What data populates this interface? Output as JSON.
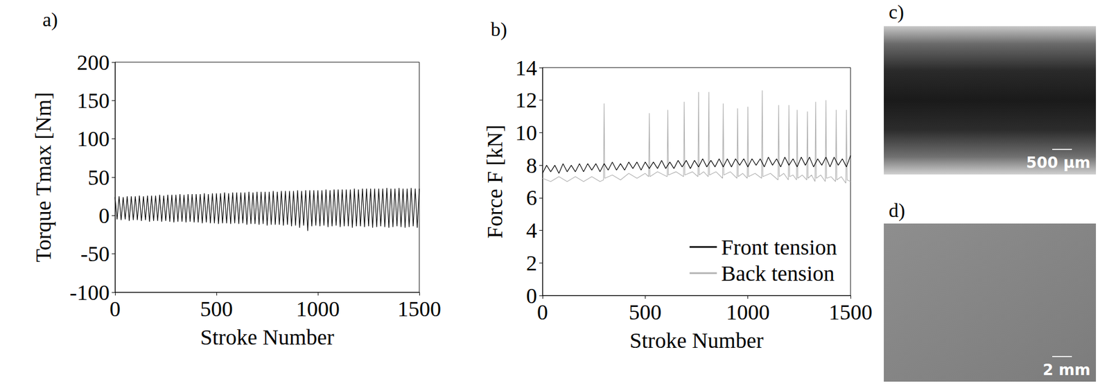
{
  "chart_data": [
    {
      "type": "line",
      "panel_label": "a)",
      "x_label": "Stroke Number",
      "y_label": "Torque Tmax [Nm]",
      "xlim": [
        0,
        1500
      ],
      "xticks": [
        0,
        500,
        1000,
        1500
      ],
      "ylim": [
        -100,
        200
      ],
      "yticks": [
        -100,
        -50,
        0,
        50,
        100,
        150,
        200
      ],
      "grid": false,
      "x": [
        0,
        10,
        20,
        30,
        40,
        50,
        60,
        70,
        80,
        90,
        100,
        110,
        120,
        130,
        140,
        150,
        160,
        170,
        180,
        190,
        200,
        210,
        220,
        230,
        240,
        250,
        260,
        270,
        280,
        290,
        300,
        310,
        320,
        330,
        340,
        350,
        360,
        370,
        380,
        390,
        400,
        410,
        420,
        430,
        440,
        450,
        460,
        470,
        480,
        490,
        500,
        510,
        520,
        530,
        540,
        550,
        560,
        570,
        580,
        590,
        600,
        610,
        620,
        630,
        640,
        650,
        660,
        670,
        680,
        690,
        700,
        710,
        720,
        730,
        740,
        750,
        760,
        770,
        780,
        790,
        800,
        810,
        820,
        830,
        840,
        850,
        860,
        870,
        880,
        890,
        900,
        910,
        920,
        930,
        940,
        950,
        960,
        970,
        980,
        990,
        1000,
        1010,
        1020,
        1030,
        1040,
        1050,
        1060,
        1070,
        1080,
        1090,
        1100,
        1110,
        1120,
        1130,
        1140,
        1150,
        1160,
        1170,
        1180,
        1190,
        1200,
        1210,
        1220,
        1230,
        1240,
        1250,
        1260,
        1270,
        1280,
        1290,
        1300,
        1310,
        1320,
        1330,
        1340,
        1350,
        1360,
        1370,
        1380,
        1390,
        1400,
        1410,
        1420,
        1430,
        1440,
        1450,
        1460,
        1470,
        1480,
        1490,
        1500
      ],
      "series": [
        {
          "color": "#000000",
          "values": [
            24,
            -5,
            25,
            -6,
            24,
            -5,
            25,
            -7,
            25,
            -6,
            25,
            -6,
            26,
            -7,
            25,
            -6,
            26,
            -8,
            26,
            -7,
            26,
            -7,
            27,
            -8,
            26,
            -7,
            27,
            -8,
            27,
            -9,
            27,
            -8,
            28,
            -8,
            27,
            -9,
            28,
            -8,
            28,
            -9,
            28,
            -9,
            28,
            -10,
            29,
            -9,
            28,
            -10,
            29,
            -10,
            29,
            -11,
            29,
            -10,
            30,
            -10,
            29,
            -11,
            30,
            -10,
            30,
            -11,
            30,
            -10,
            30,
            -12,
            31,
            -11,
            30,
            -11,
            31,
            -12,
            31,
            -11,
            31,
            -13,
            31,
            -12,
            32,
            -12,
            31,
            -12,
            32,
            -13,
            32,
            -12,
            32,
            -14,
            32,
            -13,
            33,
            -16,
            32,
            -13,
            33,
            -20,
            33,
            -14,
            33,
            -13,
            33,
            -14,
            33,
            -13,
            34,
            -15,
            33,
            -14,
            34,
            -13,
            34,
            -15,
            34,
            -14,
            34,
            -14,
            34,
            -16,
            35,
            -14,
            34,
            -14,
            35,
            -15,
            35,
            -14,
            35,
            -16,
            35,
            -15,
            35,
            -14,
            35,
            -15,
            36,
            -16,
            35,
            -15,
            35,
            -14,
            36,
            -15,
            35,
            -16,
            35,
            -15,
            36,
            -14,
            35,
            -16,
            35
          ]
        }
      ]
    },
    {
      "type": "line",
      "panel_label": "b)",
      "x_label": "Stroke Number",
      "y_label": "Force F [kN]",
      "xlim": [
        0,
        1500
      ],
      "xticks": [
        0,
        500,
        1000,
        1500
      ],
      "ylim": [
        0,
        14
      ],
      "yticks": [
        0,
        2,
        4,
        6,
        8,
        10,
        12,
        14
      ],
      "grid": false,
      "legend": "lower right",
      "series": [
        {
          "name": "Front tension",
          "color": "#000000",
          "x": [
            0,
            20,
            40,
            60,
            80,
            100,
            120,
            140,
            160,
            180,
            200,
            220,
            240,
            260,
            280,
            300,
            320,
            340,
            360,
            380,
            400,
            420,
            440,
            460,
            480,
            500,
            520,
            540,
            560,
            580,
            600,
            620,
            640,
            660,
            680,
            700,
            720,
            740,
            760,
            780,
            800,
            820,
            840,
            860,
            880,
            900,
            920,
            940,
            960,
            980,
            1000,
            1020,
            1040,
            1060,
            1080,
            1100,
            1120,
            1140,
            1160,
            1180,
            1200,
            1220,
            1240,
            1260,
            1280,
            1300,
            1320,
            1340,
            1360,
            1380,
            1400,
            1420,
            1440,
            1460,
            1480,
            1500
          ],
          "values": [
            7.5,
            8.0,
            7.6,
            8.0,
            7.5,
            8.1,
            7.6,
            8.0,
            7.6,
            8.1,
            7.6,
            8.1,
            7.7,
            8.1,
            7.6,
            8.1,
            7.7,
            8.2,
            7.7,
            8.1,
            7.7,
            8.2,
            7.8,
            8.2,
            7.7,
            8.2,
            7.8,
            8.2,
            7.8,
            8.3,
            7.8,
            8.2,
            7.8,
            8.3,
            7.9,
            8.3,
            7.8,
            8.3,
            7.9,
            8.4,
            7.9,
            8.3,
            7.9,
            8.4,
            7.9,
            8.4,
            7.9,
            8.4,
            8.0,
            8.4,
            7.9,
            8.4,
            8.0,
            8.4,
            7.9,
            8.5,
            8.0,
            8.4,
            7.9,
            8.5,
            8.0,
            8.4,
            7.9,
            8.5,
            8.0,
            8.5,
            7.9,
            8.4,
            8.0,
            8.5,
            7.9,
            8.5,
            8.0,
            8.4,
            7.9,
            8.6
          ]
        },
        {
          "name": "Back tension",
          "color": "#b0b0b0",
          "x": [
            0,
            40,
            80,
            120,
            160,
            200,
            240,
            280,
            297,
            300,
            303,
            340,
            380,
            420,
            460,
            500,
            517,
            520,
            523,
            560,
            607,
            610,
            613,
            650,
            687,
            690,
            693,
            730,
            757,
            760,
            763,
            785,
            807,
            810,
            813,
            845,
            877,
            880,
            883,
            915,
            947,
            950,
            953,
            975,
            997,
            1000,
            1003,
            1035,
            1067,
            1070,
            1073,
            1110,
            1147,
            1150,
            1153,
            1175,
            1197,
            1200,
            1203,
            1220,
            1237,
            1240,
            1243,
            1265,
            1287,
            1290,
            1293,
            1310,
            1327,
            1330,
            1333,
            1355,
            1377,
            1380,
            1383,
            1405,
            1427,
            1430,
            1433,
            1455,
            1477,
            1480,
            1483,
            1500
          ],
          "values": [
            7.2,
            7.0,
            7.3,
            7.0,
            7.3,
            7.0,
            7.3,
            7.0,
            7.1,
            11.8,
            7.2,
            7.4,
            7.1,
            7.5,
            7.2,
            7.5,
            7.3,
            11.2,
            7.3,
            7.6,
            7.3,
            11.4,
            7.4,
            7.6,
            7.3,
            11.9,
            7.4,
            7.6,
            7.3,
            12.5,
            7.4,
            7.6,
            7.3,
            12.5,
            7.4,
            7.6,
            7.2,
            11.8,
            7.4,
            7.6,
            7.2,
            11.5,
            7.3,
            7.5,
            7.2,
            11.6,
            7.3,
            7.5,
            7.2,
            12.6,
            7.3,
            7.5,
            7.1,
            11.7,
            7.3,
            7.5,
            7.1,
            11.7,
            7.3,
            7.4,
            7.1,
            11.4,
            7.2,
            7.4,
            7.1,
            11.3,
            7.2,
            7.4,
            7.0,
            11.9,
            7.2,
            7.4,
            7.0,
            12.0,
            7.2,
            7.3,
            7.0,
            11.4,
            7.1,
            7.3,
            6.9,
            11.4,
            7.1,
            7.0
          ]
        }
      ]
    }
  ],
  "images": [
    {
      "panel_label": "c)",
      "scale_bar": "500 µm"
    },
    {
      "panel_label": "d)",
      "scale_bar": "2 mm"
    }
  ]
}
